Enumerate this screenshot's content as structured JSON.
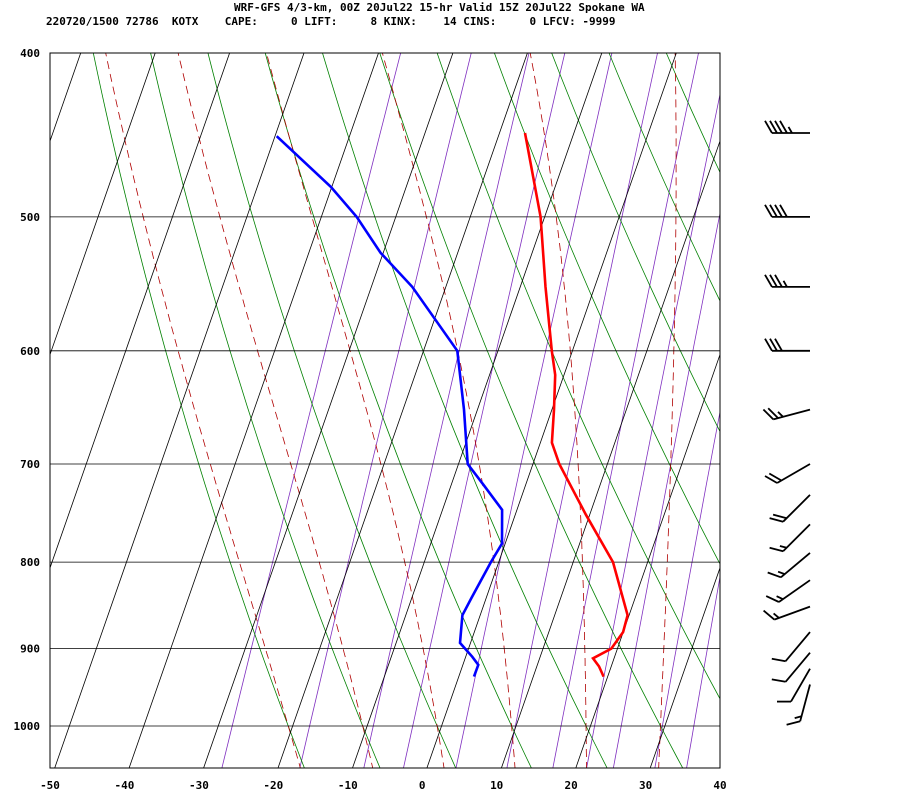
{
  "header": {
    "title_line": "WRF-GFS 4/3-km, 00Z 20Jul22 15-hr Valid 15Z 20Jul22 Spokane WA",
    "stats_line": "220720/1500 72786  KOTX    CAPE:     0 LIFT:     8 KINX:    14 CINS:     0 LFCV: -9999"
  },
  "chart_data": {
    "type": "line",
    "title": "WRF-GFS 4/3-km, 00Z 20Jul22 15-hr Valid 15Z 20Jul22 Spokane WA",
    "xlabel": "",
    "ylabel": "",
    "x_axis": "temperature (°C), skewed",
    "y_axis": "pressure (hPa), log scale",
    "xlim": [
      -50,
      40
    ],
    "ylim": [
      1040,
      400
    ],
    "x_ticks": [
      -50,
      -40,
      -30,
      -20,
      -10,
      0,
      10,
      20,
      30,
      40
    ],
    "y_ticks": [
      400,
      500,
      600,
      700,
      800,
      900,
      1000
    ],
    "series": [
      {
        "name": "",
        "color": "#ff0000",
        "points": [
          [
            446,
            -16.5
          ],
          [
            500,
            -10.4
          ],
          [
            550,
            -6.4
          ],
          [
            600,
            -2.5
          ],
          [
            620,
            -0.9
          ],
          [
            650,
            0.6
          ],
          [
            680,
            1.9
          ],
          [
            700,
            3.9
          ],
          [
            750,
            9.9
          ],
          [
            800,
            15.8
          ],
          [
            860,
            20.3
          ],
          [
            880,
            20.5
          ],
          [
            900,
            19.7
          ],
          [
            912,
            17.7
          ],
          [
            922,
            18.9
          ],
          [
            935,
            20.0
          ]
        ]
      },
      {
        "name": "",
        "color": "#0000ff",
        "points": [
          [
            448,
            -49.7
          ],
          [
            480,
            -40.0
          ],
          [
            500,
            -35.1
          ],
          [
            525,
            -30.2
          ],
          [
            550,
            -24.3
          ],
          [
            600,
            -15.2
          ],
          [
            650,
            -11.5
          ],
          [
            700,
            -8.4
          ],
          [
            720,
            -5.3
          ],
          [
            745,
            -1.6
          ],
          [
            780,
            0.0
          ],
          [
            800,
            -0.6
          ],
          [
            840,
            -1.5
          ],
          [
            860,
            -1.9
          ],
          [
            893,
            -0.9
          ],
          [
            910,
            1.4
          ],
          [
            920,
            2.6
          ],
          [
            935,
            2.6
          ]
        ]
      }
    ],
    "isotherms_c": [
      -120,
      -110,
      -100,
      -90,
      -80,
      -70,
      -60,
      -50,
      -40,
      -30,
      -20,
      -10,
      0,
      10,
      20,
      30,
      40
    ],
    "dry_adiabats_thetaC": [
      -20,
      -10,
      0,
      10,
      20,
      30,
      40,
      50,
      60,
      70,
      80,
      90,
      100,
      110
    ],
    "moist_adiabats_c": [
      -20,
      -10,
      0,
      10,
      20,
      30
    ],
    "mixing_ratio_gkg": [
      0.4,
      1,
      2,
      3,
      5,
      8,
      12,
      16,
      20,
      28,
      36
    ],
    "colors": {
      "temperature": "#ff0000",
      "dewpoint": "#0000ff",
      "isotherm": "#000000",
      "dry_adiabat": "#008000",
      "moist_adiabat": "#b00000",
      "mixing_ratio": "#8030c0",
      "wind_barb": "#000000"
    },
    "wind_barbs": [
      {
        "p": 446,
        "dir": 270,
        "kt": 45
      },
      {
        "p": 500,
        "dir": 270,
        "kt": 40
      },
      {
        "p": 550,
        "dir": 270,
        "kt": 35
      },
      {
        "p": 600,
        "dir": 270,
        "kt": 30
      },
      {
        "p": 650,
        "dir": 255,
        "kt": 25
      },
      {
        "p": 700,
        "dir": 240,
        "kt": 20
      },
      {
        "p": 730,
        "dir": 225,
        "kt": 20
      },
      {
        "p": 760,
        "dir": 225,
        "kt": 15
      },
      {
        "p": 790,
        "dir": 230,
        "kt": 15
      },
      {
        "p": 820,
        "dir": 235,
        "kt": 15
      },
      {
        "p": 850,
        "dir": 250,
        "kt": 15
      },
      {
        "p": 880,
        "dir": 220,
        "kt": 10
      },
      {
        "p": 905,
        "dir": 220,
        "kt": 10
      },
      {
        "p": 925,
        "dir": 210,
        "kt": 10
      },
      {
        "p": 945,
        "dir": 195,
        "kt": 15
      }
    ]
  }
}
